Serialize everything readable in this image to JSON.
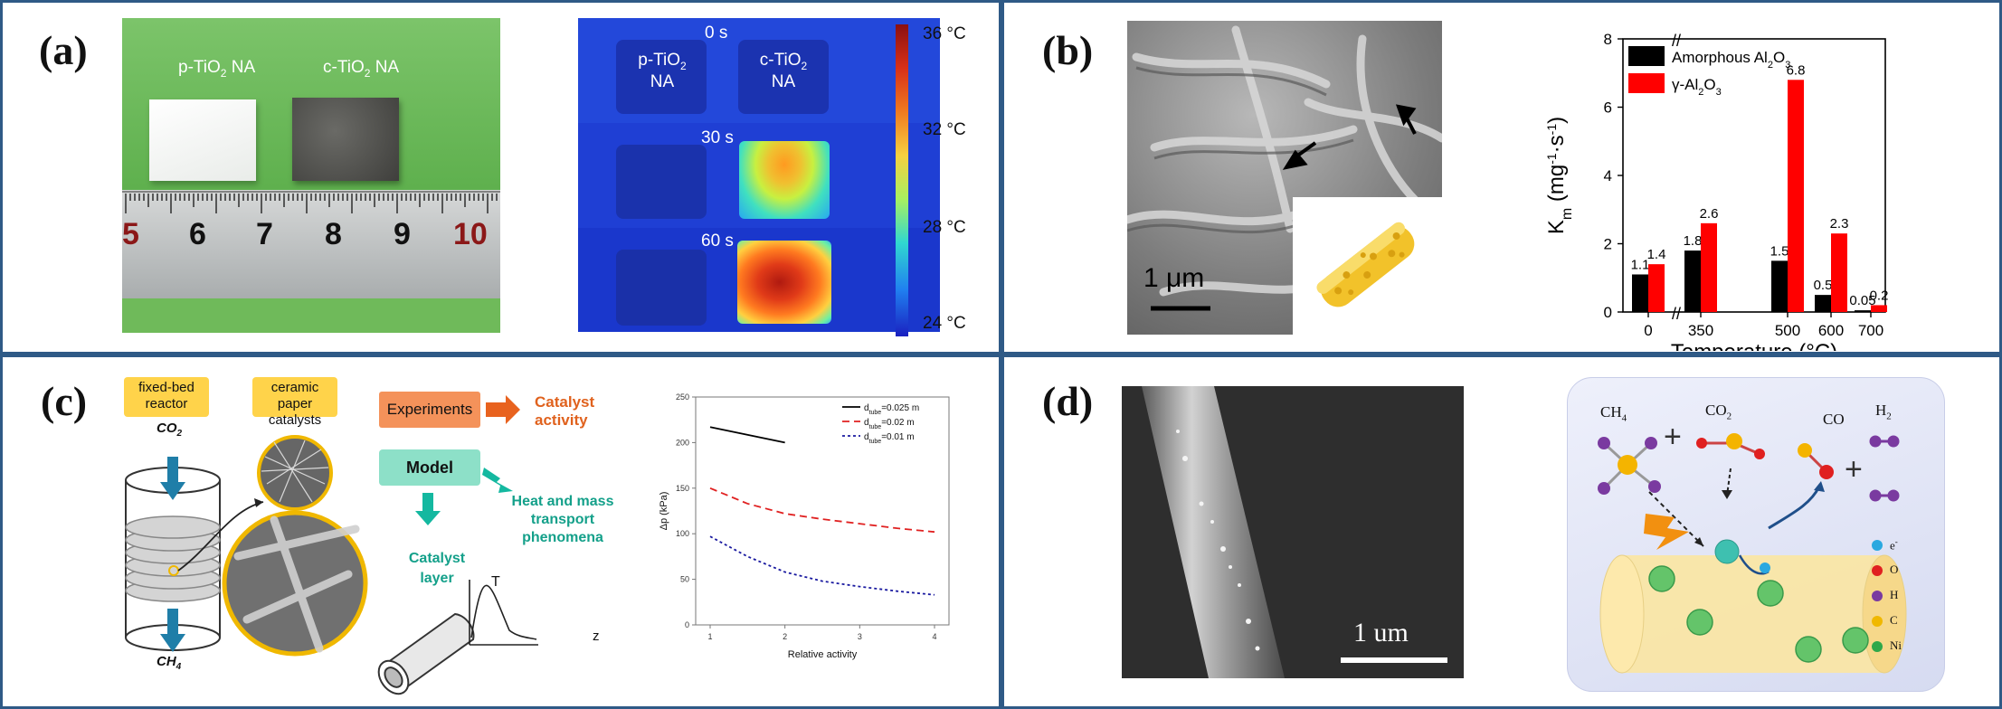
{
  "panels": {
    "a": {
      "label": "(a)",
      "photo": {
        "label_p": "p-TiO",
        "label_p_sub": "2",
        "label_p_tail": " NA",
        "label_c": "c-TiO",
        "label_c_sub": "2",
        "label_c_tail": " NA",
        "ruler_ticks": [
          "5",
          "6",
          "7",
          "8",
          "9",
          "10"
        ]
      },
      "thermal": {
        "label_p": "p-TiO",
        "label_p_sub": "2",
        "label_p_na": "NA",
        "label_c": "c-TiO",
        "label_c_sub": "2",
        "label_c_na": "NA",
        "times": [
          "0 s",
          "30 s",
          "60 s"
        ],
        "colorbar": [
          "36 °C",
          "32 °C",
          "28 °C",
          "24 °C"
        ]
      }
    },
    "b": {
      "label": "(b)",
      "scalebar": "1 μm"
    },
    "c": {
      "label": "(c)",
      "reactor_line1": "fixed-bed",
      "reactor_line2": "reactor",
      "co2": "CO",
      "co2_sub": "2",
      "ch4": "CH",
      "ch4_sub": "4",
      "ceramic_line1": "ceramic paper",
      "ceramic_line2": "catalysts",
      "experiments": "Experiments",
      "catalyst_activity_1": "Catalyst",
      "catalyst_activity_2": "activity",
      "model": "Model",
      "heat_1": "Heat and mass",
      "heat_2": "transport",
      "heat_3": "phenomena",
      "catalyst_layer_1": "Catalyst",
      "catalyst_layer_2": "layer",
      "T": "T",
      "z": "z"
    },
    "d": {
      "label": "(d)",
      "scalebar": "1 um",
      "ch4": "CH",
      "ch4_sub": "4",
      "co2": "CO",
      "co2_sub": "2",
      "co": "CO",
      "h2": "H",
      "h2_sub": "2",
      "plus": "+",
      "legend": [
        {
          "sym": "e",
          "sup": "-",
          "color": "#2aa8e0"
        },
        {
          "sym": "O",
          "sup": "",
          "color": "#e02020"
        },
        {
          "sym": "H",
          "sup": "",
          "color": "#7a3aa0"
        },
        {
          "sym": "C",
          "sup": "",
          "color": "#f0b800"
        },
        {
          "sym": "Ni",
          "sup": "",
          "color": "#2fa84a"
        }
      ]
    }
  },
  "chart_data": [
    {
      "type": "bar",
      "ylabel": "K",
      "ylabel_sub": "m",
      "ylabel_unit": " (mg",
      "ylabel_unit2": "·s",
      "ylabel_unit3": ")",
      "xlabel": "Temperature (°C)",
      "categories": [
        "0",
        "350",
        "500",
        "600",
        "700"
      ],
      "ylim": [
        0,
        8
      ],
      "yticks": [
        "0",
        "2",
        "4",
        "6",
        "8"
      ],
      "legend_position": "top-left",
      "series": [
        {
          "name": "Amorphous Al",
          "name_sub1": "2",
          "name_mid": "O",
          "name_sub2": "3",
          "color": "#000000",
          "values": [
            1.1,
            1.8,
            1.5,
            0.5,
            0.05
          ],
          "labels": [
            "1.1",
            "1.8",
            "1.5",
            "0.5",
            "0.05"
          ]
        },
        {
          "name": "γ-Al",
          "name_sub1": "2",
          "name_mid": "O",
          "name_sub2": "3",
          "color": "#ff0000",
          "values": [
            1.4,
            2.6,
            6.8,
            2.3,
            0.2
          ],
          "labels": [
            "1.4",
            "2.6",
            "6.8",
            "2.3",
            "0.2"
          ]
        }
      ]
    },
    {
      "type": "line",
      "xlabel": "Relative activity",
      "ylabel": "Δp (kPa)",
      "xlim": [
        1,
        4
      ],
      "ylim": [
        0,
        250
      ],
      "xticks": [
        "1",
        "2",
        "3",
        "4"
      ],
      "yticks": [
        "0",
        "50",
        "100",
        "150",
        "200",
        "250"
      ],
      "legend_position": "top-right",
      "series": [
        {
          "name": "d",
          "name_sub": "tube",
          "name_tail": "=0.025 m",
          "color": "#000000",
          "dash": "",
          "x": [
            1,
            2
          ],
          "y": [
            217,
            200
          ]
        },
        {
          "name": "d",
          "name_sub": "tube",
          "name_tail": "=0.02 m",
          "color": "#e02020",
          "dash": "8,5",
          "x": [
            1,
            1.5,
            2,
            2.5,
            3,
            3.5,
            4
          ],
          "y": [
            150,
            133,
            122,
            116,
            111,
            106,
            102
          ]
        },
        {
          "name": "d",
          "name_sub": "tube",
          "name_tail": "=0.01 m",
          "color": "#1a1aa0",
          "dash": "3,3",
          "x": [
            1,
            1.5,
            2,
            2.5,
            3,
            3.5,
            4
          ],
          "y": [
            97,
            75,
            58,
            48,
            42,
            37,
            33
          ]
        }
      ]
    }
  ]
}
